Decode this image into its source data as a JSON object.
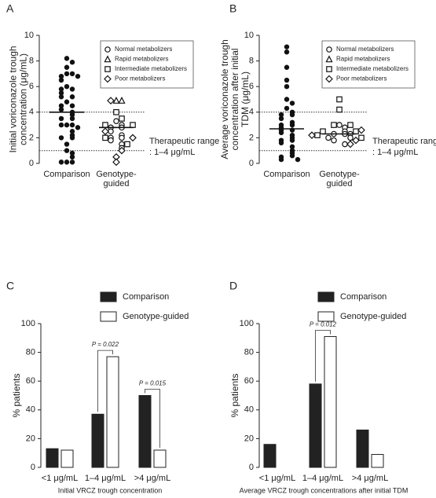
{
  "chart_data": [
    {
      "type": "dotplot",
      "panel": "A",
      "ylabel": [
        "Initial voriconazole trough",
        "concentration (μg/mL)"
      ],
      "ylim": [
        0,
        10
      ],
      "yticks": [
        0,
        2,
        4,
        6,
        8,
        10
      ],
      "reference_lines": [
        1,
        4
      ],
      "annotation": [
        "Therapeutic range",
        ": 1–4 μg/mL"
      ],
      "groups": [
        {
          "category": "Comparison",
          "median": 4.0,
          "series": [
            {
              "marker": "circle-filled",
              "color": "#111111",
              "values": [
                8.2,
                7.9,
                7.5,
                7.0,
                7.0,
                6.8,
                6.8,
                6.5,
                6.0,
                5.8,
                5.8,
                5.5,
                5.2,
                5.2,
                4.8,
                4.5,
                4.5,
                4.2,
                4.0,
                3.8,
                3.5,
                3.5,
                3.0,
                3.0,
                3.0,
                2.8,
                2.5,
                2.2,
                2.0,
                2.0,
                1.5,
                1.0,
                0.8,
                0.5,
                0.1,
                0.1,
                0.1
              ]
            }
          ]
        },
        {
          "category": "Genotype-guided",
          "median": 2.8,
          "series": [
            {
              "name": "Normal metabolizers",
              "marker": "circle",
              "color": "#111111",
              "values": [
                3.3,
                3.0,
                2.8,
                2.8,
                2.5,
                2.2,
                2.0,
                2.0,
                1.8,
                1.5,
                1.2
              ]
            },
            {
              "name": "Rapid metabolizers",
              "marker": "triangle",
              "color": "#111111",
              "values": [
                4.9,
                4.9
              ]
            },
            {
              "name": "Intermediate metabolizers",
              "marker": "square",
              "color": "#111111",
              "values": [
                4.0,
                3.5,
                3.0,
                3.0,
                2.0,
                1.5
              ]
            },
            {
              "name": "Poor metabolizers",
              "marker": "diamond",
              "color": "#111111",
              "values": [
                4.9,
                2.5,
                2.0,
                1.0,
                0.5,
                0.1
              ]
            }
          ]
        }
      ]
    },
    {
      "type": "dotplot",
      "panel": "B",
      "ylabel": [
        "Average voriconazole trough",
        "concentration after initial",
        "TDM (μg/mL)"
      ],
      "ylim": [
        0,
        10
      ],
      "yticks": [
        0,
        2,
        4,
        6,
        8,
        10
      ],
      "reference_lines": [
        1,
        4
      ],
      "annotation": [
        "Therapeutic range",
        ": 1–4 μg/mL"
      ],
      "groups": [
        {
          "category": "Comparison",
          "median": 2.7,
          "series": [
            {
              "marker": "circle-filled",
              "color": "#111111",
              "values": [
                9.1,
                8.7,
                7.5,
                6.5,
                6.0,
                5.0,
                4.7,
                4.3,
                4.0,
                3.8,
                3.8,
                3.5,
                3.2,
                3.0,
                3.0,
                2.8,
                2.6,
                2.6,
                2.4,
                2.2,
                2.0,
                1.8,
                1.8,
                1.6,
                1.3,
                1.0,
                0.8,
                0.6,
                0.5,
                0.3,
                0.3
              ]
            }
          ]
        },
        {
          "category": "Genotype-guided",
          "median": 2.3,
          "series": [
            {
              "name": "Normal metabolizers",
              "marker": "circle",
              "color": "#111111",
              "values": [
                3.0,
                2.8,
                2.5,
                2.3,
                2.3,
                2.3,
                2.0,
                2.0,
                1.8,
                1.5
              ]
            },
            {
              "name": "Rapid metabolizers",
              "marker": "triangle",
              "color": "#111111",
              "values": []
            },
            {
              "name": "Intermediate metabolizers",
              "marker": "square",
              "color": "#111111",
              "values": [
                5.0,
                4.2,
                3.0,
                3.0,
                2.5,
                2.5,
                2.2,
                2.0
              ]
            },
            {
              "name": "Poor metabolizers",
              "marker": "diamond",
              "color": "#111111",
              "values": [
                2.6,
                2.2,
                1.8,
                1.5
              ]
            }
          ]
        }
      ]
    },
    {
      "type": "bar",
      "panel": "C",
      "ylabel": "% patients",
      "xlabel": "Initial VRCZ trough concentration",
      "categories": [
        "<1 μg/mL",
        "1–4 μg/mL",
        ">4 μg/mL"
      ],
      "ylim": [
        0,
        100
      ],
      "yticks": [
        0,
        20,
        40,
        60,
        80,
        100
      ],
      "series": [
        {
          "name": "Comparison",
          "color": "#222222",
          "values": [
            13,
            37,
            50
          ]
        },
        {
          "name": "Genotype-guided",
          "color": "#ffffff",
          "values": [
            12,
            77,
            12
          ]
        }
      ],
      "annotations": [
        {
          "category": 1,
          "text": "P = 0.022"
        },
        {
          "category": 2,
          "text": "P = 0.015"
        }
      ]
    },
    {
      "type": "bar",
      "panel": "D",
      "ylabel": "% patients",
      "xlabel": "Average VRCZ trough concentrations after initial TDM",
      "categories": [
        "<1 μg/mL",
        "1–4 μg/mL",
        ">4 μg/mL"
      ],
      "ylim": [
        0,
        100
      ],
      "yticks": [
        0,
        20,
        40,
        60,
        80,
        100
      ],
      "series": [
        {
          "name": "Comparison",
          "color": "#222222",
          "values": [
            16,
            58,
            26
          ]
        },
        {
          "name": "Genotype-guided",
          "color": "#ffffff",
          "values": [
            0,
            91,
            9
          ]
        }
      ],
      "annotations": [
        {
          "category": 1,
          "text": "P = 0.012"
        }
      ]
    }
  ]
}
